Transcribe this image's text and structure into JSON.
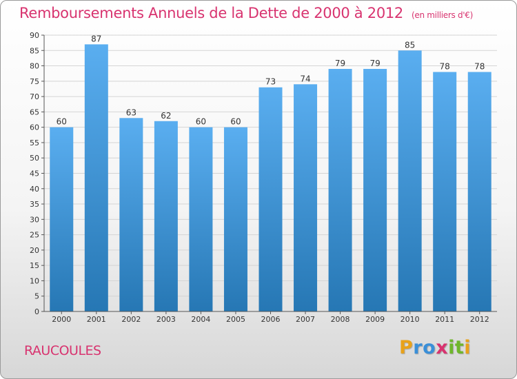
{
  "title": "Remboursements Annuels de la Dette de 2000 à 2012",
  "title_unit": "(en milliers d'€)",
  "commune": "RAUCOULES",
  "logo": {
    "text": "Proxiti",
    "letters": [
      {
        "ch": "P",
        "color": "#e8a21a"
      },
      {
        "ch": "r",
        "color": "#3a8fd8"
      },
      {
        "ch": "o",
        "color": "#3a8fd8"
      },
      {
        "ch": "x",
        "color": "#d8336f"
      },
      {
        "ch": "i",
        "color": "#6fb62c"
      },
      {
        "ch": "t",
        "color": "#6fb62c"
      },
      {
        "ch": "i",
        "color": "#e8a21a"
      }
    ]
  },
  "colors": {
    "bar_light": "#5aaef0",
    "bar_dark": "#2677b4",
    "accent": "#d8336f"
  },
  "chart_data": {
    "type": "bar",
    "categories": [
      "2000",
      "2001",
      "2002",
      "2003",
      "2004",
      "2005",
      "2006",
      "2007",
      "2008",
      "2009",
      "2010",
      "2011",
      "2012"
    ],
    "values": [
      60,
      87,
      63,
      62,
      60,
      60,
      73,
      74,
      79,
      79,
      85,
      78,
      78
    ],
    "ylim": [
      0,
      90
    ],
    "yticks": [
      0,
      5,
      10,
      15,
      20,
      25,
      30,
      35,
      40,
      45,
      50,
      55,
      60,
      65,
      70,
      75,
      80,
      85,
      90
    ],
    "grid": true,
    "legend": "none"
  }
}
